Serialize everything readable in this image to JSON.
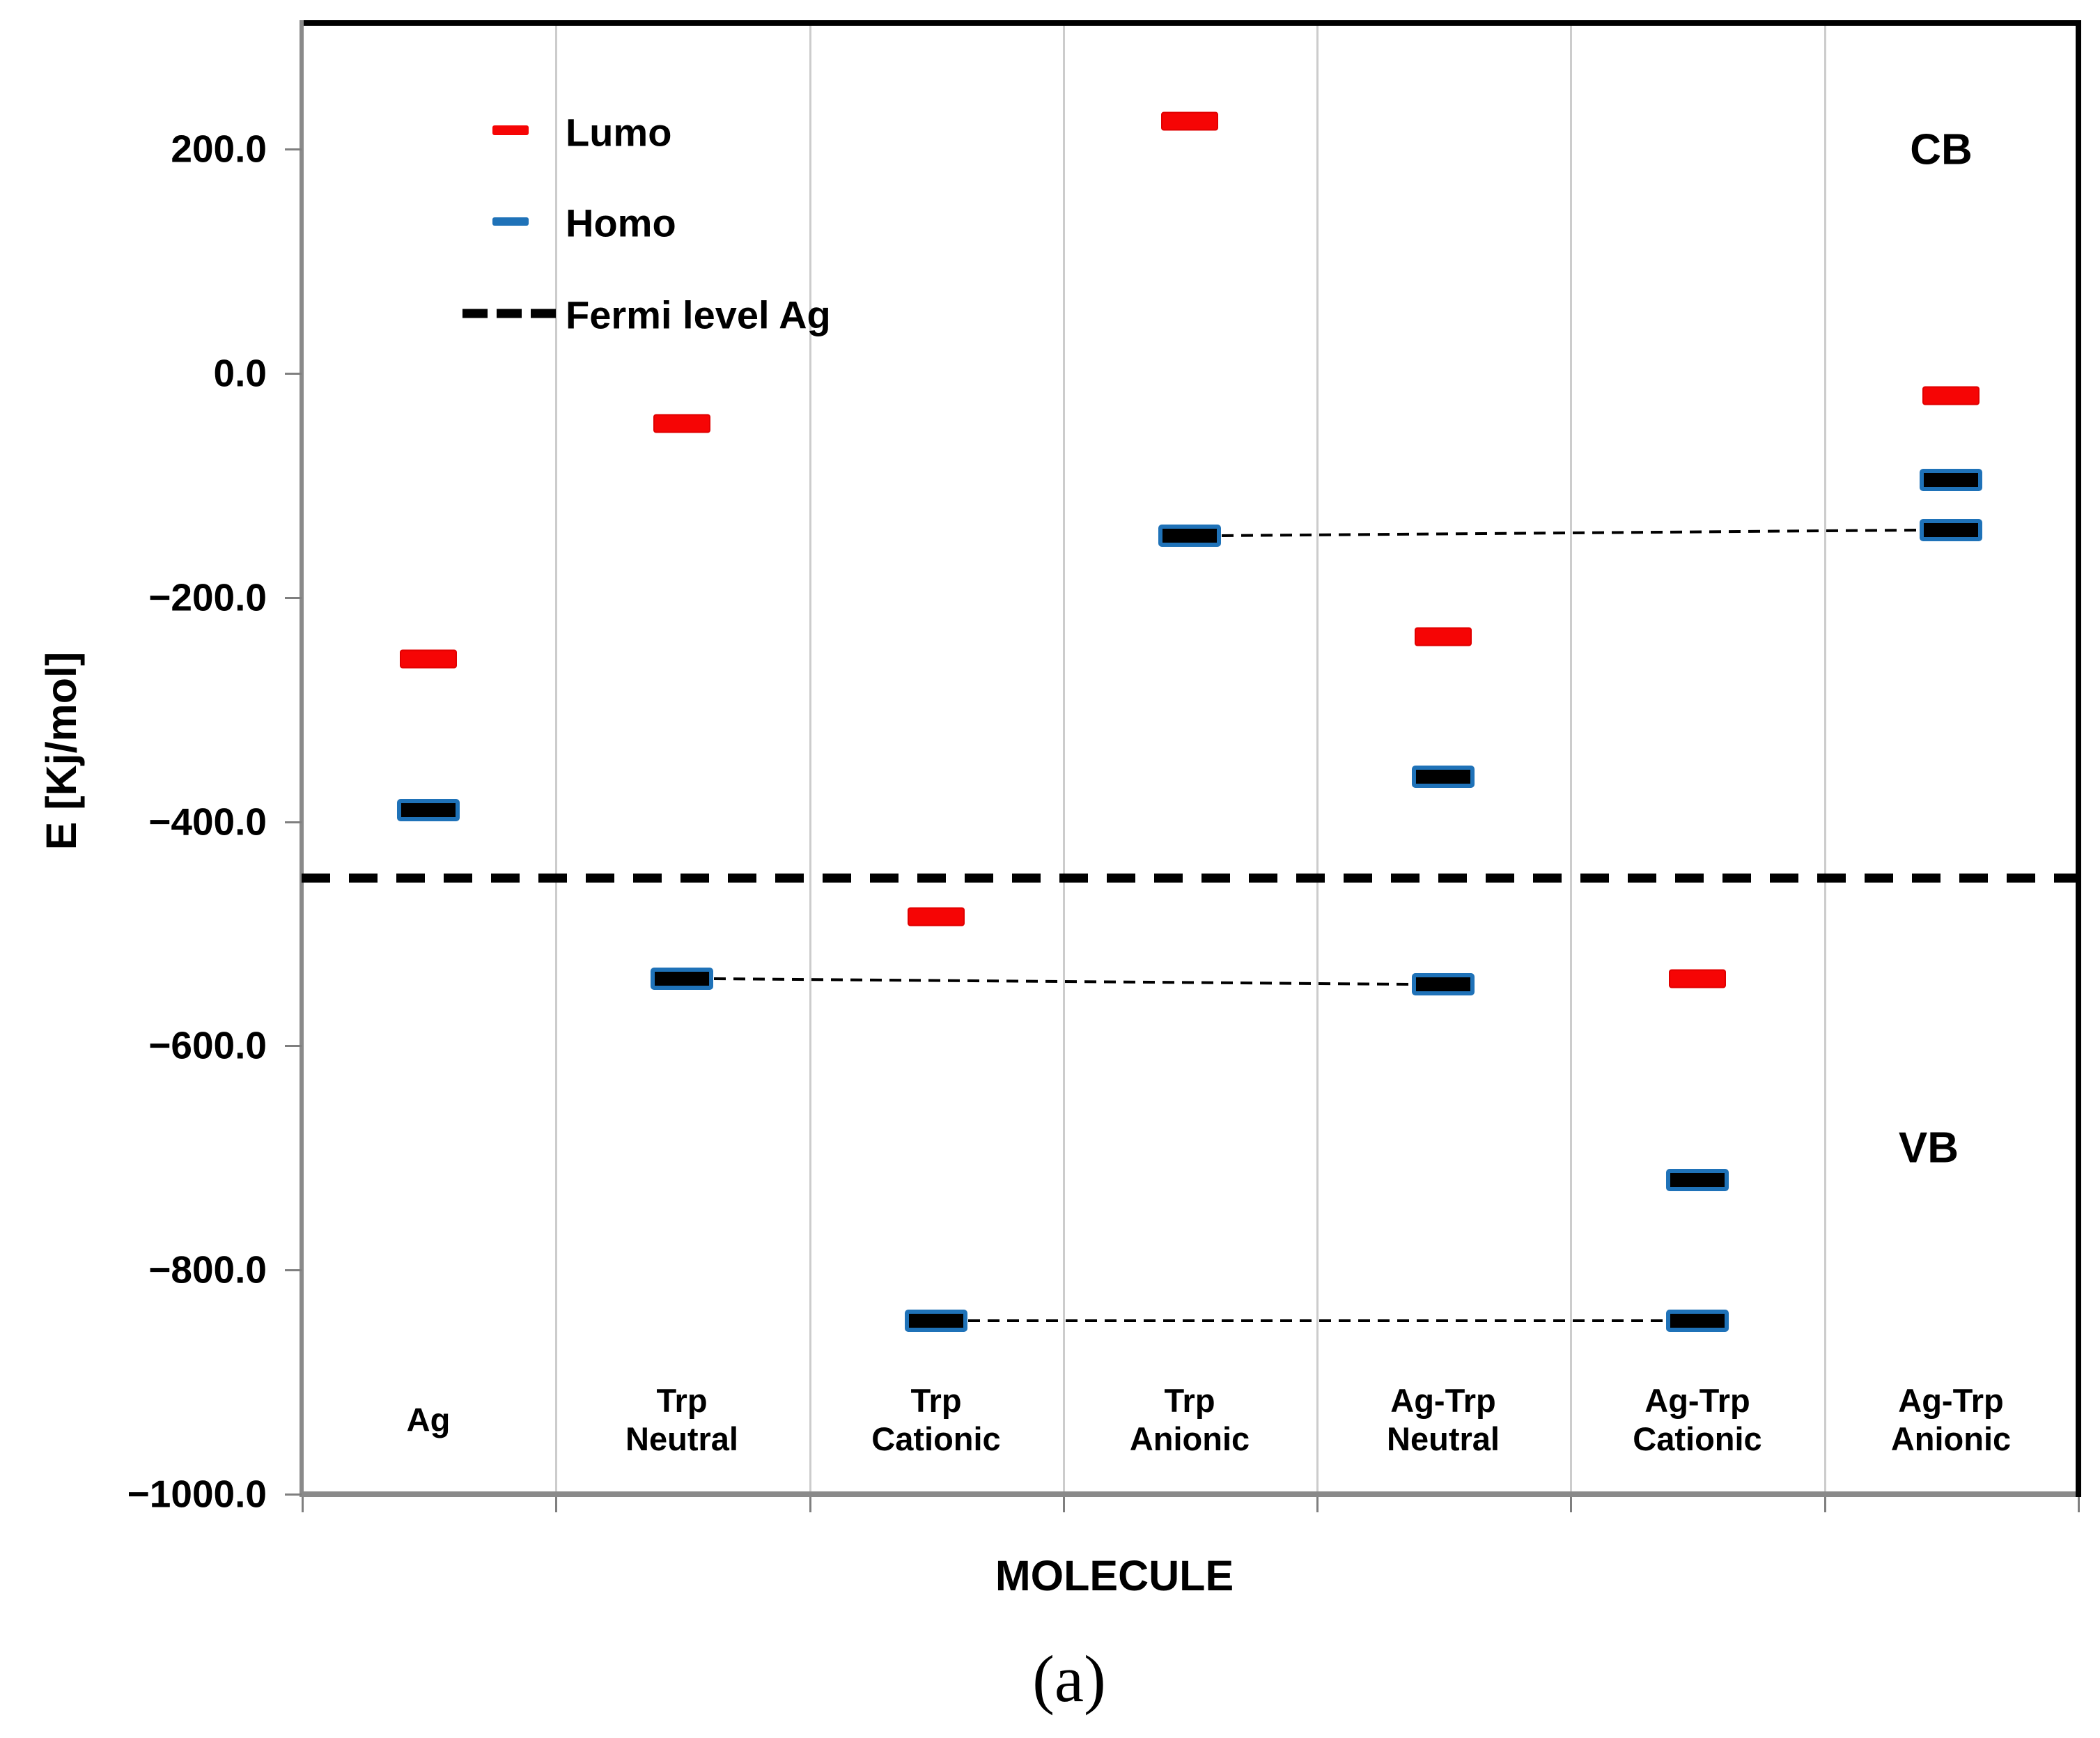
{
  "caption": "(a)",
  "region_labels": {
    "cb": "CB",
    "vb": "VB"
  },
  "y_axis": {
    "title": "E [Kj/mol]",
    "tick_values": [
      200,
      0,
      -200,
      -400,
      -600,
      -800,
      -1000
    ],
    "tick_labels": [
      "200.0",
      "0.0",
      "−200.0",
      "−400.0",
      "−600.0",
      "−800.0",
      "−1000.0"
    ]
  },
  "x_axis": {
    "title": "MOLECULE",
    "category_lines": [
      [
        "Ag"
      ],
      [
        "Trp",
        "Neutral"
      ],
      [
        "Trp",
        "Cationic"
      ],
      [
        "Trp",
        "Anionic"
      ],
      [
        "Ag-Trp",
        "Neutral"
      ],
      [
        "Ag-Trp",
        "Cationic"
      ],
      [
        "Ag-Trp",
        "Anionic"
      ]
    ]
  },
  "legend": {
    "items": [
      {
        "label": "Lumo",
        "style": "solid",
        "color": "#f60505"
      },
      {
        "label": "Homo",
        "style": "solid",
        "color": "#1f72b8"
      },
      {
        "label": "Fermi level Ag",
        "style": "dashed",
        "color": "#000000"
      }
    ]
  },
  "colors": {
    "lumo": "#f60505",
    "homo_border": "#1f72b8",
    "homo_fill": "#000000",
    "fermi": "#000000",
    "gridline": "#cccccc"
  },
  "chart_data": {
    "type": "scatter",
    "subtype": "energy-level-diagram",
    "title": "",
    "xlabel": "MOLECULE",
    "ylabel": "E [Kj/mol]",
    "units": "Kj/mol",
    "ylim": [
      -1000,
      312
    ],
    "grid": "vertical-category-separators",
    "legend_position": "top-left-inside",
    "categories": [
      "Ag",
      "Trp Neutral",
      "Trp Cationic",
      "Trp Anionic",
      "Ag-Trp Neutral",
      "Ag-Trp Cationic",
      "Ag-Trp Anionic"
    ],
    "series": [
      {
        "name": "Lumo",
        "marker": "red-dash",
        "values": [
          -255,
          -45,
          -485,
          225,
          -235,
          -540,
          -20
        ]
      },
      {
        "name": "Homo",
        "marker": "blue-black-dash",
        "values": [
          -390,
          -540,
          -845,
          -145,
          -360,
          -720,
          -95
        ]
      },
      {
        "name": "Homo secondary level",
        "marker": "blue-black-dash",
        "values": [
          null,
          null,
          null,
          null,
          -545,
          -845,
          -140
        ]
      }
    ],
    "fermi_level_ag": -450,
    "connectors": [
      {
        "from_category": 1,
        "from_value": -540,
        "to_category": 4,
        "to_value": -545
      },
      {
        "from_category": 3,
        "from_value": -145,
        "to_category": 6,
        "to_value": -140
      },
      {
        "from_category": 2,
        "from_value": -845,
        "to_category": 5,
        "to_value": -845
      }
    ]
  }
}
